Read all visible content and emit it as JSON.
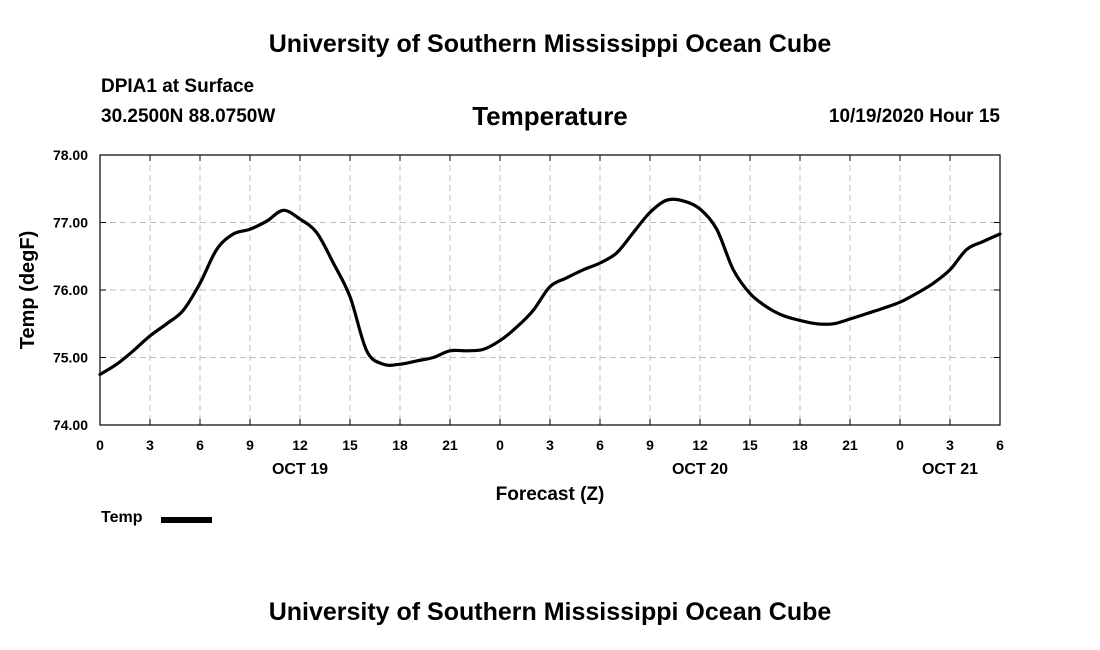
{
  "header": {
    "top_title": "University of Southern Mississippi Ocean Cube",
    "bottom_title": "University of Southern Mississippi Ocean Cube",
    "station": "DPIA1 at Surface",
    "coords": "30.2500N 88.0750W",
    "datetime": "10/19/2020 Hour 15"
  },
  "legend": {
    "label": "Temp",
    "color": "#000000"
  },
  "chart_data": {
    "type": "line",
    "title": "Temperature",
    "xlabel": "Forecast (Z)",
    "ylabel": "Temp (degF)",
    "ylim": [
      74.0,
      78.0
    ],
    "xlim": [
      0,
      54
    ],
    "grid": true,
    "yticks": [
      "74.00",
      "75.00",
      "76.00",
      "77.00",
      "78.00"
    ],
    "ytick_values": [
      74,
      75,
      76,
      77,
      78
    ],
    "xticks": [
      "0",
      "3",
      "6",
      "9",
      "12",
      "15",
      "18",
      "21",
      "0",
      "3",
      "6",
      "9",
      "12",
      "15",
      "18",
      "21",
      "0",
      "3",
      "6"
    ],
    "date_labels": [
      {
        "label": "OCT 19",
        "at": 12
      },
      {
        "label": "OCT 20",
        "at": 36
      },
      {
        "label": "OCT 21",
        "at": 51
      }
    ],
    "series": [
      {
        "name": "Temp",
        "color": "#000000",
        "x": [
          0,
          1,
          2,
          3,
          4,
          5,
          6,
          7,
          8,
          9,
          10,
          11,
          12,
          13,
          14,
          15,
          16,
          17,
          18,
          19,
          20,
          21,
          22,
          23,
          24,
          25,
          26,
          27,
          28,
          29,
          30,
          31,
          32,
          33,
          34,
          35,
          36,
          37,
          38,
          39,
          40,
          41,
          42,
          43,
          44,
          45,
          46,
          47,
          48,
          49,
          50,
          51,
          52,
          53,
          54
        ],
        "y": [
          74.75,
          74.9,
          75.1,
          75.32,
          75.5,
          75.7,
          76.1,
          76.6,
          76.83,
          76.9,
          77.02,
          77.18,
          77.05,
          76.85,
          76.4,
          75.9,
          75.1,
          74.9,
          74.9,
          74.95,
          75.0,
          75.1,
          75.1,
          75.12,
          75.25,
          75.45,
          75.7,
          76.05,
          76.18,
          76.3,
          76.4,
          76.55,
          76.85,
          77.15,
          77.33,
          77.32,
          77.2,
          76.9,
          76.3,
          75.95,
          75.75,
          75.62,
          75.55,
          75.5,
          75.5,
          75.57,
          75.65,
          75.73,
          75.82,
          75.95,
          76.1,
          76.3,
          76.6,
          76.72,
          76.83
        ]
      }
    ]
  }
}
